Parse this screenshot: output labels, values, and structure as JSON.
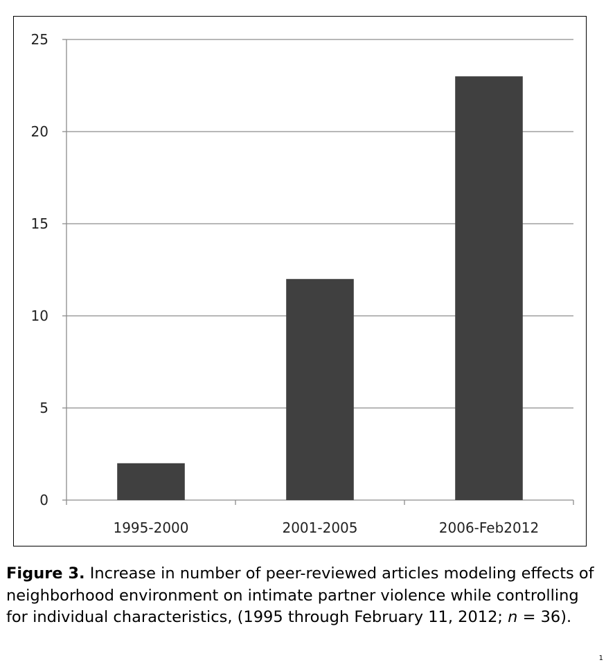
{
  "chart_data": {
    "type": "bar",
    "categories": [
      "1995-2000",
      "2001-2005",
      "2006-Feb2012"
    ],
    "values": [
      2,
      12,
      23
    ],
    "ylim": [
      0,
      25
    ],
    "yticks": [
      0,
      5,
      10,
      15,
      20,
      25
    ],
    "grid": true,
    "bar_color": "#404040",
    "grid_color": "#8c8c8c"
  },
  "caption": {
    "label": "Figure 3.",
    "text_before_n": " Increase in number of peer-reviewed articles modeling effects of neighborhood environment on intimate partner violence while controlling for individual characteristics, (1995 through February 11, 2012; ",
    "n_symbol": "n",
    "text_after_n": " = 36)."
  },
  "corner_mark": "1"
}
